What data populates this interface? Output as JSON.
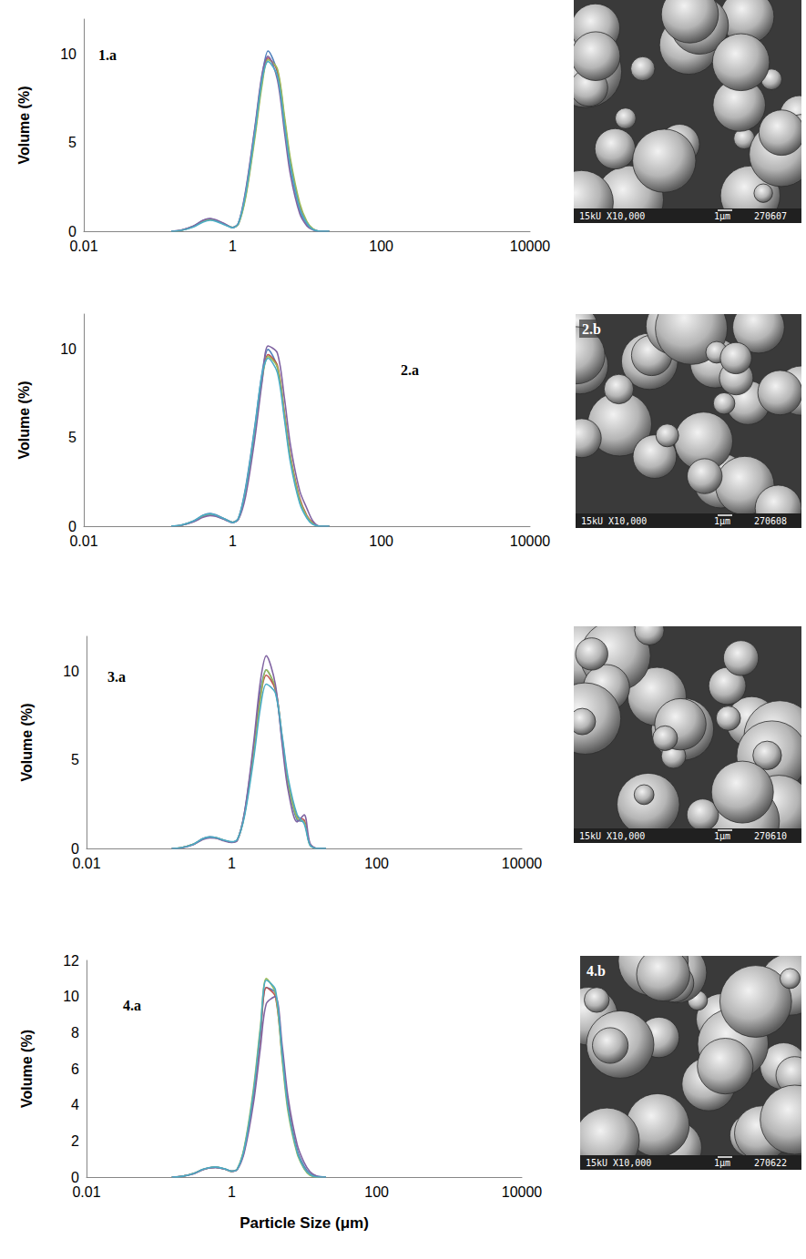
{
  "chart_data": [
    {
      "type": "line",
      "title": "1.a",
      "ylabel": "Volume (%)",
      "log": "x",
      "grid": false,
      "xlim": [
        0.01,
        10000
      ],
      "xticks": [
        0.01,
        1,
        100,
        10000
      ],
      "ylim": [
        0,
        12
      ],
      "yticks": [
        0,
        5,
        10
      ],
      "x": [
        0.15,
        0.2,
        0.3,
        0.4,
        0.5,
        0.6,
        0.8,
        1,
        1.2,
        1.5,
        2,
        2.5,
        3,
        4,
        5,
        6,
        8,
        10,
        12,
        15,
        20
      ],
      "series": [
        {
          "color": "#4f81bd",
          "values": [
            0,
            0.05,
            0.3,
            0.6,
            0.7,
            0.62,
            0.38,
            0.2,
            0.45,
            2.2,
            5.8,
            8.8,
            10.2,
            9.0,
            6.0,
            3.6,
            1.2,
            0.4,
            0.1,
            0,
            0
          ]
        },
        {
          "color": "#c0504d",
          "values": [
            0,
            0.04,
            0.28,
            0.58,
            0.68,
            0.6,
            0.37,
            0.21,
            0.42,
            2.0,
            5.5,
            8.5,
            9.8,
            9.1,
            6.3,
            3.9,
            1.4,
            0.5,
            0.12,
            0,
            0
          ]
        },
        {
          "color": "#9bbb59",
          "values": [
            0,
            0.04,
            0.27,
            0.56,
            0.66,
            0.6,
            0.38,
            0.22,
            0.4,
            1.9,
            5.3,
            8.3,
            9.7,
            9.2,
            6.5,
            4.1,
            1.6,
            0.55,
            0.15,
            0,
            0
          ]
        },
        {
          "color": "#8064a2",
          "values": [
            0,
            0.05,
            0.3,
            0.62,
            0.72,
            0.64,
            0.4,
            0.21,
            0.46,
            2.3,
            5.9,
            8.9,
            9.9,
            8.6,
            5.6,
            3.2,
            1.0,
            0.3,
            0.08,
            0,
            0
          ]
        },
        {
          "color": "#4bacc6",
          "values": [
            0,
            0.04,
            0.25,
            0.52,
            0.62,
            0.56,
            0.35,
            0.2,
            0.44,
            2.1,
            5.6,
            8.6,
            9.6,
            8.8,
            6.0,
            3.7,
            1.3,
            0.45,
            0.1,
            0,
            0
          ]
        }
      ]
    },
    {
      "type": "line",
      "title": "2.a",
      "ylabel": "Volume (%)",
      "log": "x",
      "grid": false,
      "xlim": [
        0.01,
        10000
      ],
      "xticks": [
        0.01,
        1,
        100,
        10000
      ],
      "ylim": [
        0,
        12
      ],
      "yticks": [
        0,
        5,
        10
      ],
      "x": [
        0.15,
        0.2,
        0.3,
        0.4,
        0.5,
        0.6,
        0.8,
        1,
        1.2,
        1.5,
        2,
        2.5,
        3,
        4,
        5,
        6,
        8,
        10,
        12,
        15,
        20
      ],
      "series": [
        {
          "color": "#4f81bd",
          "values": [
            0,
            0.05,
            0.3,
            0.62,
            0.72,
            0.64,
            0.4,
            0.22,
            0.45,
            2.2,
            5.7,
            8.7,
            10.0,
            9.0,
            6.2,
            3.8,
            1.4,
            0.5,
            0.15,
            0,
            0
          ]
        },
        {
          "color": "#c0504d",
          "values": [
            0,
            0.04,
            0.28,
            0.58,
            0.68,
            0.6,
            0.38,
            0.22,
            0.42,
            2.0,
            5.4,
            8.4,
            9.7,
            9.1,
            6.4,
            4.0,
            1.6,
            0.6,
            0.2,
            0,
            0
          ]
        },
        {
          "color": "#9bbb59",
          "values": [
            0,
            0.04,
            0.27,
            0.55,
            0.65,
            0.58,
            0.37,
            0.22,
            0.4,
            1.9,
            5.3,
            8.3,
            9.6,
            9.0,
            6.3,
            3.9,
            1.5,
            0.55,
            0.15,
            0,
            0
          ]
        },
        {
          "color": "#8064a2",
          "values": [
            0,
            0.04,
            0.25,
            0.5,
            0.6,
            0.55,
            0.35,
            0.2,
            0.38,
            1.7,
            5.0,
            8.2,
            10.2,
            9.8,
            7.2,
            4.6,
            2.0,
            1.0,
            0.3,
            0,
            0
          ]
        },
        {
          "color": "#4bacc6",
          "values": [
            0,
            0.05,
            0.3,
            0.6,
            0.7,
            0.62,
            0.39,
            0.21,
            0.44,
            2.1,
            5.6,
            8.6,
            9.5,
            8.7,
            6.0,
            3.6,
            1.3,
            0.45,
            0.1,
            0,
            0
          ]
        }
      ]
    },
    {
      "type": "line",
      "title": "3.a",
      "ylabel": "Volume (%)",
      "log": "x",
      "grid": false,
      "xlim": [
        0.01,
        10000
      ],
      "xticks": [
        0.01,
        1,
        100,
        10000
      ],
      "ylim": [
        0,
        12
      ],
      "yticks": [
        0,
        5,
        10
      ],
      "x": [
        0.15,
        0.2,
        0.3,
        0.4,
        0.5,
        0.6,
        0.8,
        1,
        1.2,
        1.5,
        2,
        2.5,
        3,
        4,
        5,
        6,
        8,
        10,
        12,
        15,
        20
      ],
      "series": [
        {
          "color": "#4f81bd",
          "values": [
            0,
            0.04,
            0.25,
            0.55,
            0.65,
            0.62,
            0.45,
            0.35,
            0.5,
            2.0,
            5.6,
            8.9,
            10.1,
            9.0,
            6.0,
            3.6,
            1.6,
            1.5,
            0.2,
            0,
            0
          ]
        },
        {
          "color": "#c0504d",
          "values": [
            0,
            0.04,
            0.24,
            0.54,
            0.64,
            0.6,
            0.44,
            0.36,
            0.48,
            1.9,
            5.4,
            8.6,
            9.8,
            9.0,
            6.2,
            3.8,
            1.8,
            1.6,
            0.25,
            0,
            0
          ]
        },
        {
          "color": "#9bbb59",
          "values": [
            0,
            0.04,
            0.24,
            0.53,
            0.63,
            0.6,
            0.45,
            0.36,
            0.48,
            1.9,
            5.3,
            8.5,
            10.1,
            9.1,
            6.1,
            3.7,
            1.7,
            1.5,
            0.2,
            0,
            0
          ]
        },
        {
          "color": "#8064a2",
          "values": [
            0,
            0.03,
            0.22,
            0.5,
            0.6,
            0.58,
            0.42,
            0.34,
            0.45,
            2.0,
            5.9,
            9.5,
            10.9,
            9.3,
            5.8,
            3.3,
            1.5,
            1.9,
            0.3,
            0,
            0
          ]
        },
        {
          "color": "#4bacc6",
          "values": [
            0,
            0.04,
            0.25,
            0.55,
            0.65,
            0.62,
            0.46,
            0.38,
            0.52,
            1.8,
            5.0,
            8.0,
            9.3,
            8.8,
            6.3,
            4.0,
            1.9,
            1.4,
            0.2,
            0,
            0
          ]
        }
      ]
    },
    {
      "type": "line",
      "title": "4.a",
      "ylabel": "Volume (%)",
      "xlabel": "Particle Size (μm)",
      "log": "x",
      "grid": false,
      "xlim": [
        0.01,
        10000
      ],
      "xticks": [
        0.01,
        1,
        100,
        10000
      ],
      "ylim": [
        0,
        12
      ],
      "yticks": [
        0,
        2,
        4,
        6,
        8,
        10,
        12
      ],
      "x": [
        0.15,
        0.2,
        0.3,
        0.4,
        0.5,
        0.6,
        0.8,
        1,
        1.2,
        1.5,
        2,
        2.5,
        3,
        4,
        5,
        6,
        8,
        10,
        12,
        15,
        20
      ],
      "series": [
        {
          "color": "#4f81bd",
          "values": [
            0,
            0.03,
            0.2,
            0.42,
            0.52,
            0.55,
            0.45,
            0.32,
            0.45,
            1.6,
            4.6,
            8.0,
            10.5,
            10.2,
            6.8,
            4.0,
            1.5,
            0.6,
            0.2,
            0.05,
            0
          ]
        },
        {
          "color": "#c0504d",
          "values": [
            0,
            0.03,
            0.2,
            0.42,
            0.52,
            0.55,
            0.45,
            0.32,
            0.44,
            1.5,
            4.5,
            7.9,
            10.5,
            10.0,
            6.6,
            3.9,
            1.4,
            0.5,
            0.15,
            0,
            0
          ]
        },
        {
          "color": "#9bbb59",
          "values": [
            0,
            0.03,
            0.2,
            0.42,
            0.52,
            0.55,
            0.45,
            0.32,
            0.46,
            1.7,
            4.9,
            8.4,
            11.0,
            10.2,
            6.4,
            3.6,
            1.3,
            0.45,
            0.1,
            0,
            0
          ]
        },
        {
          "color": "#8064a2",
          "values": [
            0,
            0.03,
            0.18,
            0.4,
            0.5,
            0.52,
            0.44,
            0.32,
            0.42,
            1.4,
            4.1,
            7.2,
            9.6,
            10.0,
            7.2,
            4.4,
            1.8,
            0.8,
            0.3,
            0.05,
            0
          ]
        },
        {
          "color": "#4bacc6",
          "values": [
            0,
            0.03,
            0.2,
            0.43,
            0.53,
            0.56,
            0.46,
            0.33,
            0.45,
            1.6,
            4.7,
            8.2,
            10.9,
            10.4,
            6.7,
            3.8,
            1.4,
            0.5,
            0.15,
            0,
            0
          ]
        }
      ]
    }
  ],
  "sem_images": [
    {
      "caption": "15kU X10,000",
      "scale": "1μm",
      "id": "270607"
    },
    {
      "label": "2.b",
      "caption": "15kU X10,000",
      "scale": "1μm",
      "id": "270608"
    },
    {
      "caption": "15kU X10,000",
      "scale": "1μm",
      "id": "270610"
    },
    {
      "label": "4.b",
      "caption": "15kU X10,000",
      "scale": "1μm",
      "id": "270622"
    }
  ]
}
